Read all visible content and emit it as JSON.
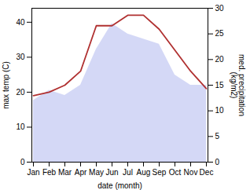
{
  "chart_data": {
    "type": "line",
    "categories": [
      "Jan",
      "Feb",
      "Mar",
      "Apr",
      "May",
      "Jun",
      "Jul",
      "Aug",
      "Sep",
      "Oct",
      "Nov",
      "Dec"
    ],
    "xlabel": "date (month)",
    "ylabel": "max temp (C)",
    "y2label": "med. precipitation\n(kg/m2)",
    "ylim": [
      0,
      44
    ],
    "yticks": [
      0,
      10,
      20,
      30,
      40
    ],
    "y2lim": [
      0,
      30
    ],
    "y2ticks": [
      0,
      5,
      10,
      15,
      20,
      25,
      30
    ],
    "series": [
      {
        "type": "area",
        "axis": "y2",
        "color": "#b0b8ee",
        "values": [
          12,
          14,
          13,
          15,
          22,
          27,
          25,
          24,
          23,
          17,
          15,
          15
        ]
      },
      {
        "type": "line",
        "color": "#b03030",
        "values": [
          19,
          20,
          22,
          26,
          39,
          39,
          42,
          42,
          38,
          32,
          26,
          21
        ]
      }
    ]
  }
}
